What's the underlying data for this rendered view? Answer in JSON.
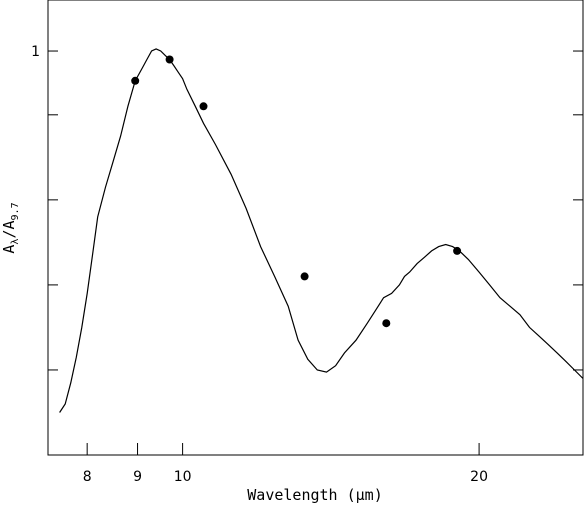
{
  "chart_data": {
    "type": "line",
    "title": "",
    "xlabel": "Wavelength (μm)",
    "ylabel": "Aλ/A9.7",
    "ylabel_parts": {
      "main_a": "A",
      "sub_a": "λ",
      "slash": "/",
      "main_b": "A",
      "sub_b": "9.7"
    },
    "xscale": "log",
    "xlim": [
      7.3,
      25.5
    ],
    "ylim": [
      0.0,
      1.07
    ],
    "x_ticks": [
      8,
      9,
      10,
      20
    ],
    "x_tick_labels": [
      "8",
      "9",
      "10",
      "20"
    ],
    "y_ticks": [
      0.95,
      0.8,
      0.6,
      0.4,
      0.2
    ],
    "y_tick_labels": [
      "1",
      "",
      "",
      "",
      ""
    ],
    "grid": false,
    "legend": "none",
    "series": [
      {
        "style": "line",
        "x": [
          7.5,
          7.6,
          7.7,
          7.8,
          7.9,
          8.0,
          8.1,
          8.2,
          8.35,
          8.5,
          8.65,
          8.8,
          8.95,
          9.1,
          9.2,
          9.3,
          9.4,
          9.5,
          9.6,
          9.7,
          9.8,
          9.9,
          10.0,
          10.1,
          10.3,
          10.5,
          10.8,
          11.2,
          11.6,
          12.0,
          12.4,
          12.8,
          13.1,
          13.4,
          13.7,
          14.0,
          14.3,
          14.6,
          15.0,
          15.4,
          15.7,
          16.0,
          16.3,
          16.6,
          16.8,
          17.0,
          17.3,
          17.6,
          17.9,
          18.2,
          18.5,
          18.8,
          19.1,
          19.5,
          20.0,
          20.5,
          21.0,
          21.5,
          22.0,
          22.5,
          23.0,
          23.5,
          24.0,
          24.5,
          25.0,
          25.5
        ],
        "y": [
          0.1,
          0.12,
          0.17,
          0.23,
          0.3,
          0.38,
          0.47,
          0.56,
          0.63,
          0.69,
          0.75,
          0.82,
          0.88,
          0.91,
          0.93,
          0.95,
          0.955,
          0.95,
          0.94,
          0.93,
          0.915,
          0.9,
          0.885,
          0.86,
          0.82,
          0.78,
          0.73,
          0.66,
          0.58,
          0.49,
          0.42,
          0.35,
          0.27,
          0.225,
          0.2,
          0.195,
          0.21,
          0.24,
          0.27,
          0.31,
          0.34,
          0.37,
          0.38,
          0.4,
          0.42,
          0.43,
          0.45,
          0.465,
          0.48,
          0.49,
          0.495,
          0.49,
          0.48,
          0.46,
          0.43,
          0.4,
          0.37,
          0.35,
          0.33,
          0.3,
          0.28,
          0.26,
          0.24,
          0.22,
          0.2,
          0.18
        ]
      },
      {
        "style": "points",
        "x": [
          8.95,
          9.7,
          10.5,
          13.3,
          16.1,
          19.0
        ],
        "y": [
          0.88,
          0.93,
          0.82,
          0.42,
          0.31,
          0.48
        ]
      }
    ]
  }
}
